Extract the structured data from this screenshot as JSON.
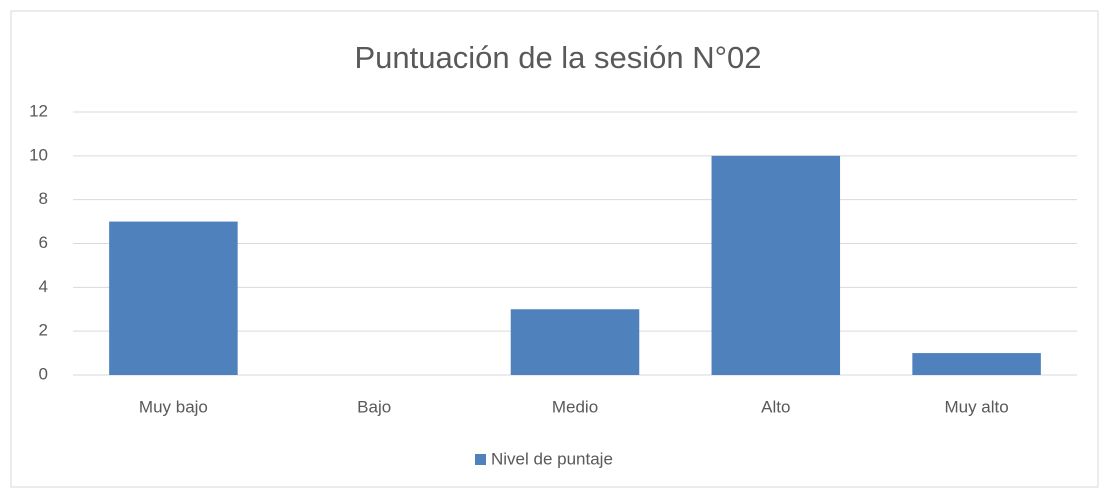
{
  "chart_data": {
    "type": "bar",
    "title": "Puntuación de la sesión N°02",
    "categories": [
      "Muy bajo",
      "Bajo",
      "Medio",
      "Alto",
      "Muy alto"
    ],
    "series": [
      {
        "name": "Nivel de puntaje",
        "color": "#4f81bd",
        "values": [
          7,
          0,
          3,
          10,
          1
        ]
      }
    ],
    "ylim": [
      0,
      12
    ],
    "yticks": [
      0,
      2,
      4,
      6,
      8,
      10,
      12
    ],
    "grid": true,
    "legend": "bottom"
  }
}
